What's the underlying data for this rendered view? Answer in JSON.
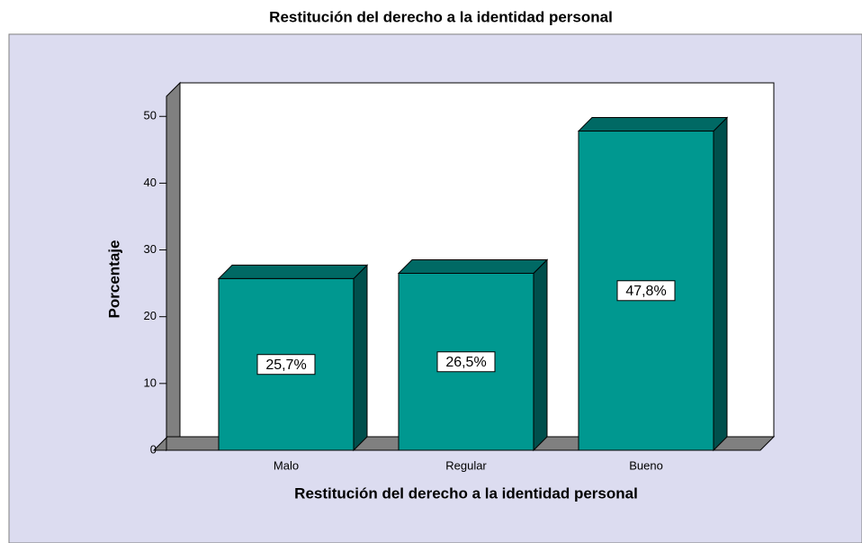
{
  "chart_data": {
    "type": "bar",
    "title": "Restitución del derecho a la identidad personal",
    "x_label": "Restitución del derecho a la identidad personal",
    "y_label": "Porcentaje",
    "categories": [
      "Malo",
      "Regular",
      "Bueno"
    ],
    "values": [
      25.7,
      26.5,
      47.8
    ],
    "value_labels": [
      "25,7%",
      "26,5%",
      "47,8%"
    ],
    "color": "#009890",
    "ylim": [
      0,
      53
    ],
    "yticks": [
      0,
      10,
      20,
      30,
      40,
      50
    ]
  }
}
